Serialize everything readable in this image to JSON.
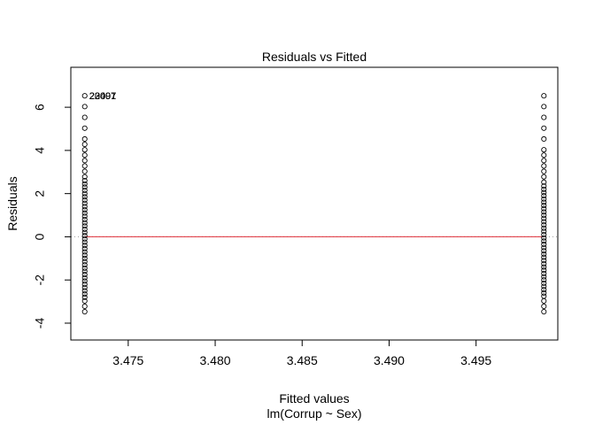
{
  "chart_data": {
    "type": "scatter",
    "title": "Residuals vs Fitted",
    "xlabel": "Fitted values",
    "xlabel_sub": "lm(Corrup ~ Sex)",
    "ylabel": "Residuals",
    "xlim": [
      3.4717,
      3.4997
    ],
    "ylim": [
      -4.78,
      7.85
    ],
    "x_ticks": [
      3.475,
      3.48,
      3.485,
      3.49,
      3.495
    ],
    "x_tick_labels": [
      "3.475",
      "3.480",
      "3.485",
      "3.490",
      "3.495"
    ],
    "y_ticks": [
      -4,
      -2,
      0,
      2,
      4,
      6
    ],
    "y_tick_labels": [
      "-4",
      "-2",
      "0",
      "2",
      "4",
      "6"
    ],
    "grid": false,
    "reference_line": {
      "y": 0,
      "style": "dotted",
      "color": "#999999"
    },
    "smooth_line": {
      "color": "#e0303a"
    },
    "series": [
      {
        "x": 3.4725,
        "y": [
          6.53,
          6.03,
          5.53,
          5.03,
          4.53,
          4.28,
          4.03,
          3.78,
          3.53,
          3.28,
          3.03,
          2.78,
          2.6,
          2.45,
          2.3,
          2.15,
          2.0,
          1.85,
          1.7,
          1.55,
          1.4,
          1.25,
          1.1,
          0.95,
          0.8,
          0.65,
          0.5,
          0.35,
          0.2,
          0.05,
          -0.1,
          -0.25,
          -0.4,
          -0.55,
          -0.7,
          -0.85,
          -1.0,
          -1.15,
          -1.3,
          -1.45,
          -1.6,
          -1.75,
          -1.9,
          -2.05,
          -2.2,
          -2.35,
          -2.5,
          -2.65,
          -2.8,
          -2.97,
          -3.22,
          -3.47
        ]
      },
      {
        "x": 3.4989,
        "y": [
          6.53,
          6.03,
          5.53,
          5.03,
          4.53,
          4.03,
          3.78,
          3.53,
          3.28,
          3.03,
          2.78,
          2.53,
          2.35,
          2.2,
          2.05,
          1.9,
          1.75,
          1.6,
          1.45,
          1.3,
          1.15,
          1.0,
          0.85,
          0.7,
          0.55,
          0.4,
          0.25,
          0.1,
          -0.05,
          -0.2,
          -0.35,
          -0.5,
          -0.65,
          -0.8,
          -0.95,
          -1.1,
          -1.25,
          -1.4,
          -1.55,
          -1.7,
          -1.85,
          -2.0,
          -2.15,
          -2.3,
          -2.45,
          -2.6,
          -2.75,
          -2.97,
          -3.22,
          -3.47
        ]
      }
    ],
    "point_labels": [
      {
        "text": "23407",
        "x": 3.4725,
        "y": 6.53
      },
      {
        "text": "22097",
        "x": 3.4725,
        "y": 6.53
      },
      {
        "text": "20091",
        "x": 3.4725,
        "y": 6.53
      }
    ]
  }
}
